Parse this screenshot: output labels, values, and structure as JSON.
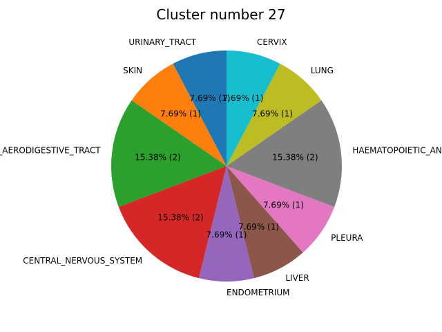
{
  "chart_data": {
    "type": "pie",
    "title": "Cluster number 27",
    "start_angle_deg": 90,
    "direction": "counterclockwise",
    "slices": [
      {
        "label": "URINARY_TRACT",
        "value": 1,
        "pct_text": "7.69%  (1)",
        "color": "#1f77b4"
      },
      {
        "label": "SKIN",
        "value": 1,
        "pct_text": "7.69%  (1)",
        "color": "#ff7f0e"
      },
      {
        "label": "UPPER_AERODIGESTIVE_TRACT",
        "value": 2,
        "pct_text": "15.38%  (2)",
        "color": "#2ca02c"
      },
      {
        "label": "CENTRAL_NERVOUS_SYSTEM",
        "value": 2,
        "pct_text": "15.38%  (2)",
        "color": "#d62728"
      },
      {
        "label": "ENDOMETRIUM",
        "value": 1,
        "pct_text": "7.69%  (1)",
        "color": "#9467bd"
      },
      {
        "label": "LIVER",
        "value": 1,
        "pct_text": "7.69%  (1)",
        "color": "#8c564b"
      },
      {
        "label": "PLEURA",
        "value": 1,
        "pct_text": "7.69%  (1)",
        "color": "#e377c2"
      },
      {
        "label": "HAEMATOPOIETIC_AND_LYMPHOID_TISSUE",
        "value": 2,
        "pct_text": "15.38%  (2)",
        "color": "#7f7f7f"
      },
      {
        "label": "LUNG",
        "value": 1,
        "pct_text": "7.69%  (1)",
        "color": "#bcbd22"
      },
      {
        "label": "CERVIX",
        "value": 1,
        "pct_text": "7.69%  (1)",
        "color": "#17becf"
      }
    ]
  }
}
